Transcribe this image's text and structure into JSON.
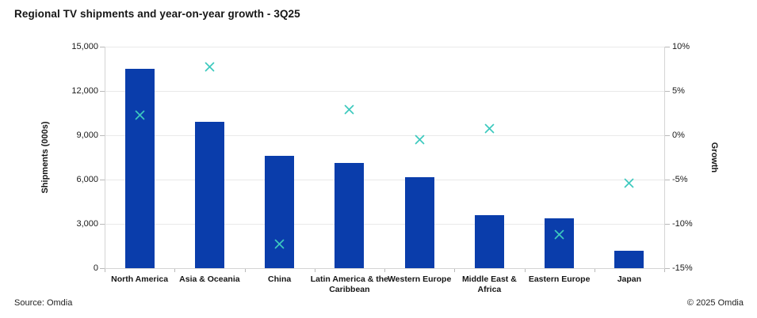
{
  "title": "Regional TV shipments and year-on-year growth - 3Q25",
  "footer": {
    "source": "Source: Omdia",
    "copyright": "© 2025 Omdia"
  },
  "colors": {
    "bar": "#0a3dab",
    "marker": "#3dc9be",
    "gridline": "#e9e9e9",
    "axis_line": "#d4d4d4",
    "text": "#161616"
  },
  "left_axis": {
    "label": "Shipments (000s)",
    "min": 0,
    "max": 15000,
    "ticks": [
      {
        "value": 0,
        "label": "0"
      },
      {
        "value": 3000,
        "label": "3,000"
      },
      {
        "value": 6000,
        "label": "6,000"
      },
      {
        "value": 9000,
        "label": "9,000"
      },
      {
        "value": 12000,
        "label": "12,000"
      },
      {
        "value": 15000,
        "label": "15,000"
      }
    ]
  },
  "right_axis": {
    "label": "Growth",
    "min": -15,
    "max": 10,
    "ticks": [
      {
        "value": -15,
        "label": "-15%"
      },
      {
        "value": -10,
        "label": "-10%"
      },
      {
        "value": -5,
        "label": "-5%"
      },
      {
        "value": 0,
        "label": "0%"
      },
      {
        "value": 5,
        "label": "5%"
      },
      {
        "value": 10,
        "label": "10%"
      }
    ]
  },
  "chart_data": {
    "type": "bar",
    "title": "Regional TV shipments and year-on-year growth - 3Q25",
    "categories": [
      "North America",
      "Asia & Oceania",
      "China",
      "Latin America & the Caribbean",
      "Western Europe",
      "Middle East & Africa",
      "Eastern Europe",
      "Japan"
    ],
    "category_label_lines": [
      [
        "North America"
      ],
      [
        "Asia & Oceania"
      ],
      [
        "China"
      ],
      [
        "Latin America & the",
        "Caribbean"
      ],
      [
        "Western Europe"
      ],
      [
        "Middle East &",
        "Africa"
      ],
      [
        "Eastern Europe"
      ],
      [
        "Japan"
      ]
    ],
    "series": [
      {
        "name": "Shipments (000s)",
        "type": "bar",
        "axis": "left",
        "values": [
          13500,
          9900,
          7600,
          7150,
          6150,
          3600,
          3400,
          1200
        ]
      },
      {
        "name": "Growth",
        "type": "scatter",
        "marker": "x",
        "axis": "right",
        "values": [
          2.3,
          7.7,
          -12.3,
          2.9,
          -0.5,
          0.8,
          -11.2,
          -5.4
        ]
      }
    ],
    "xlabel": "",
    "ylabel": "Shipments (000s)",
    "ylabel_right": "Growth",
    "ylim": [
      0,
      15000
    ],
    "ylim_right": [
      -15,
      10
    ],
    "grid": "horizontal",
    "legend": "none"
  }
}
